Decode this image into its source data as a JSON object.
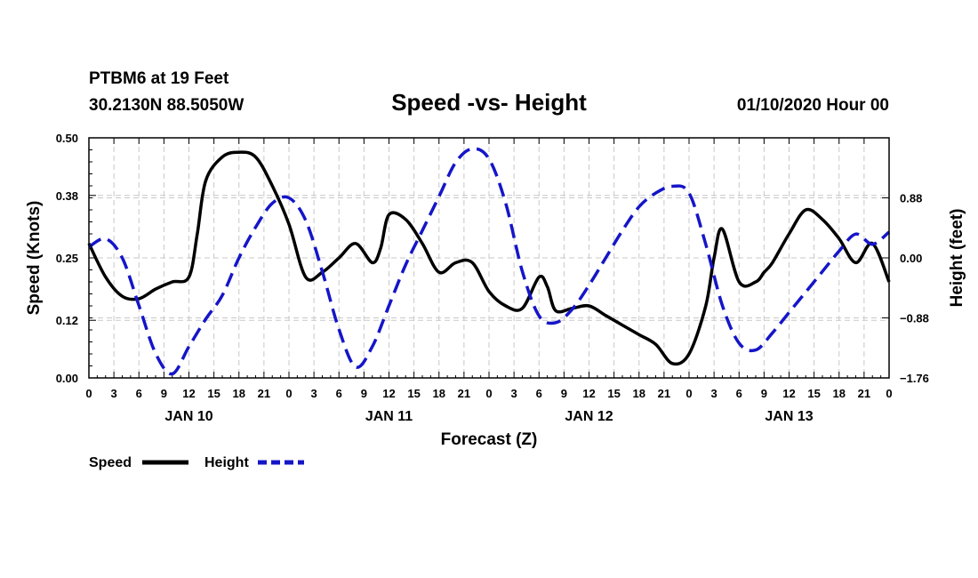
{
  "header": {
    "station": "PTBM6 at 19 Feet",
    "coords": "30.2130N 88.5050W",
    "title": "Speed -vs- Height",
    "run": "01/10/2020 Hour 00"
  },
  "colors": {
    "speed": "#000000",
    "height": "#1515c8",
    "frame": "#000000",
    "grid": "#c8c8c8"
  },
  "chart_data": {
    "type": "line",
    "title": "Speed -vs- Height",
    "xlabel": "Forecast (Z)",
    "ylabel": "Speed (Knots)",
    "y2label": "Height (feet)",
    "xlim": [
      0,
      96
    ],
    "ylim": [
      0,
      0.5
    ],
    "y2lim": [
      -1.76,
      1.76
    ],
    "yticks": [
      0.0,
      0.12,
      0.25,
      0.38,
      0.5
    ],
    "ytick_labels": [
      "0.00",
      "0.12",
      "0.25",
      "0.38",
      "0.50"
    ],
    "y2ticks": [
      -1.76,
      -0.88,
      0.0,
      0.88
    ],
    "y2tick_labels": [
      "−1.76",
      "−0.88",
      "0.00",
      "0.88"
    ],
    "xticks": [
      0,
      3,
      6,
      9,
      12,
      15,
      18,
      21,
      24,
      27,
      30,
      33,
      36,
      39,
      42,
      45,
      48,
      51,
      54,
      57,
      60,
      63,
      66,
      69,
      72,
      75,
      78,
      81,
      84,
      87,
      90,
      93,
      96
    ],
    "xtick_labels": [
      "0",
      "3",
      "6",
      "9",
      "12",
      "15",
      "18",
      "21",
      "0",
      "3",
      "6",
      "9",
      "12",
      "15",
      "18",
      "21",
      "0",
      "3",
      "6",
      "9",
      "12",
      "15",
      "18",
      "21",
      "0",
      "3",
      "6",
      "9",
      "12",
      "15",
      "18",
      "21",
      "0"
    ],
    "day_labels": [
      {
        "x": 12,
        "label": "JAN 10"
      },
      {
        "x": 36,
        "label": "JAN 11"
      },
      {
        "x": 60,
        "label": "JAN 12"
      },
      {
        "x": 84,
        "label": "JAN 13"
      }
    ],
    "grid": true,
    "series": [
      {
        "name": "Speed",
        "axis": "left",
        "style": "solid",
        "x": [
          0,
          2,
          4,
          6,
          8,
          10,
          12,
          13,
          14,
          16,
          18,
          20,
          22,
          24,
          26,
          28,
          30,
          32,
          34,
          35,
          36,
          38,
          40,
          42,
          44,
          46,
          48,
          50,
          52,
          54,
          55,
          56,
          58,
          60,
          62,
          64,
          66,
          68,
          70,
          72,
          74,
          75,
          76,
          78,
          80,
          81,
          82,
          84,
          86,
          88,
          90,
          92,
          94,
          96
        ],
        "values": [
          0.28,
          0.21,
          0.17,
          0.165,
          0.185,
          0.2,
          0.21,
          0.3,
          0.41,
          0.46,
          0.47,
          0.46,
          0.4,
          0.32,
          0.21,
          0.22,
          0.25,
          0.28,
          0.24,
          0.27,
          0.34,
          0.33,
          0.28,
          0.22,
          0.24,
          0.24,
          0.18,
          0.15,
          0.145,
          0.21,
          0.19,
          0.14,
          0.145,
          0.15,
          0.13,
          0.11,
          0.09,
          0.07,
          0.03,
          0.05,
          0.15,
          0.25,
          0.31,
          0.2,
          0.2,
          0.22,
          0.24,
          0.3,
          0.35,
          0.33,
          0.29,
          0.24,
          0.28,
          0.2
        ]
      },
      {
        "name": "Height",
        "axis": "right",
        "style": "dashed",
        "x": [
          0,
          2,
          4,
          6,
          8,
          10,
          12,
          14,
          16,
          18,
          20,
          22,
          24,
          26,
          28,
          30,
          32,
          34,
          36,
          38,
          40,
          42,
          44,
          46,
          48,
          50,
          52,
          54,
          56,
          58,
          60,
          62,
          64,
          66,
          68,
          70,
          72,
          74,
          76,
          78,
          80,
          82,
          84,
          86,
          88,
          90,
          92,
          94,
          96
        ],
        "values": [
          0.16,
          0.28,
          0.0,
          -0.7,
          -1.4,
          -1.7,
          -1.3,
          -0.9,
          -0.55,
          0.0,
          0.45,
          0.8,
          0.88,
          0.55,
          -0.2,
          -1.05,
          -1.6,
          -1.3,
          -0.7,
          -0.1,
          0.4,
          0.9,
          1.4,
          1.6,
          1.45,
          0.8,
          -0.2,
          -0.85,
          -0.95,
          -0.75,
          -0.4,
          0.0,
          0.4,
          0.75,
          0.95,
          1.05,
          0.95,
          0.2,
          -0.7,
          -1.25,
          -1.35,
          -1.1,
          -0.8,
          -0.5,
          -0.2,
          0.1,
          0.35,
          0.2,
          0.38
        ]
      }
    ]
  },
  "legend": {
    "speed_label": "Speed",
    "height_label": "Height"
  }
}
